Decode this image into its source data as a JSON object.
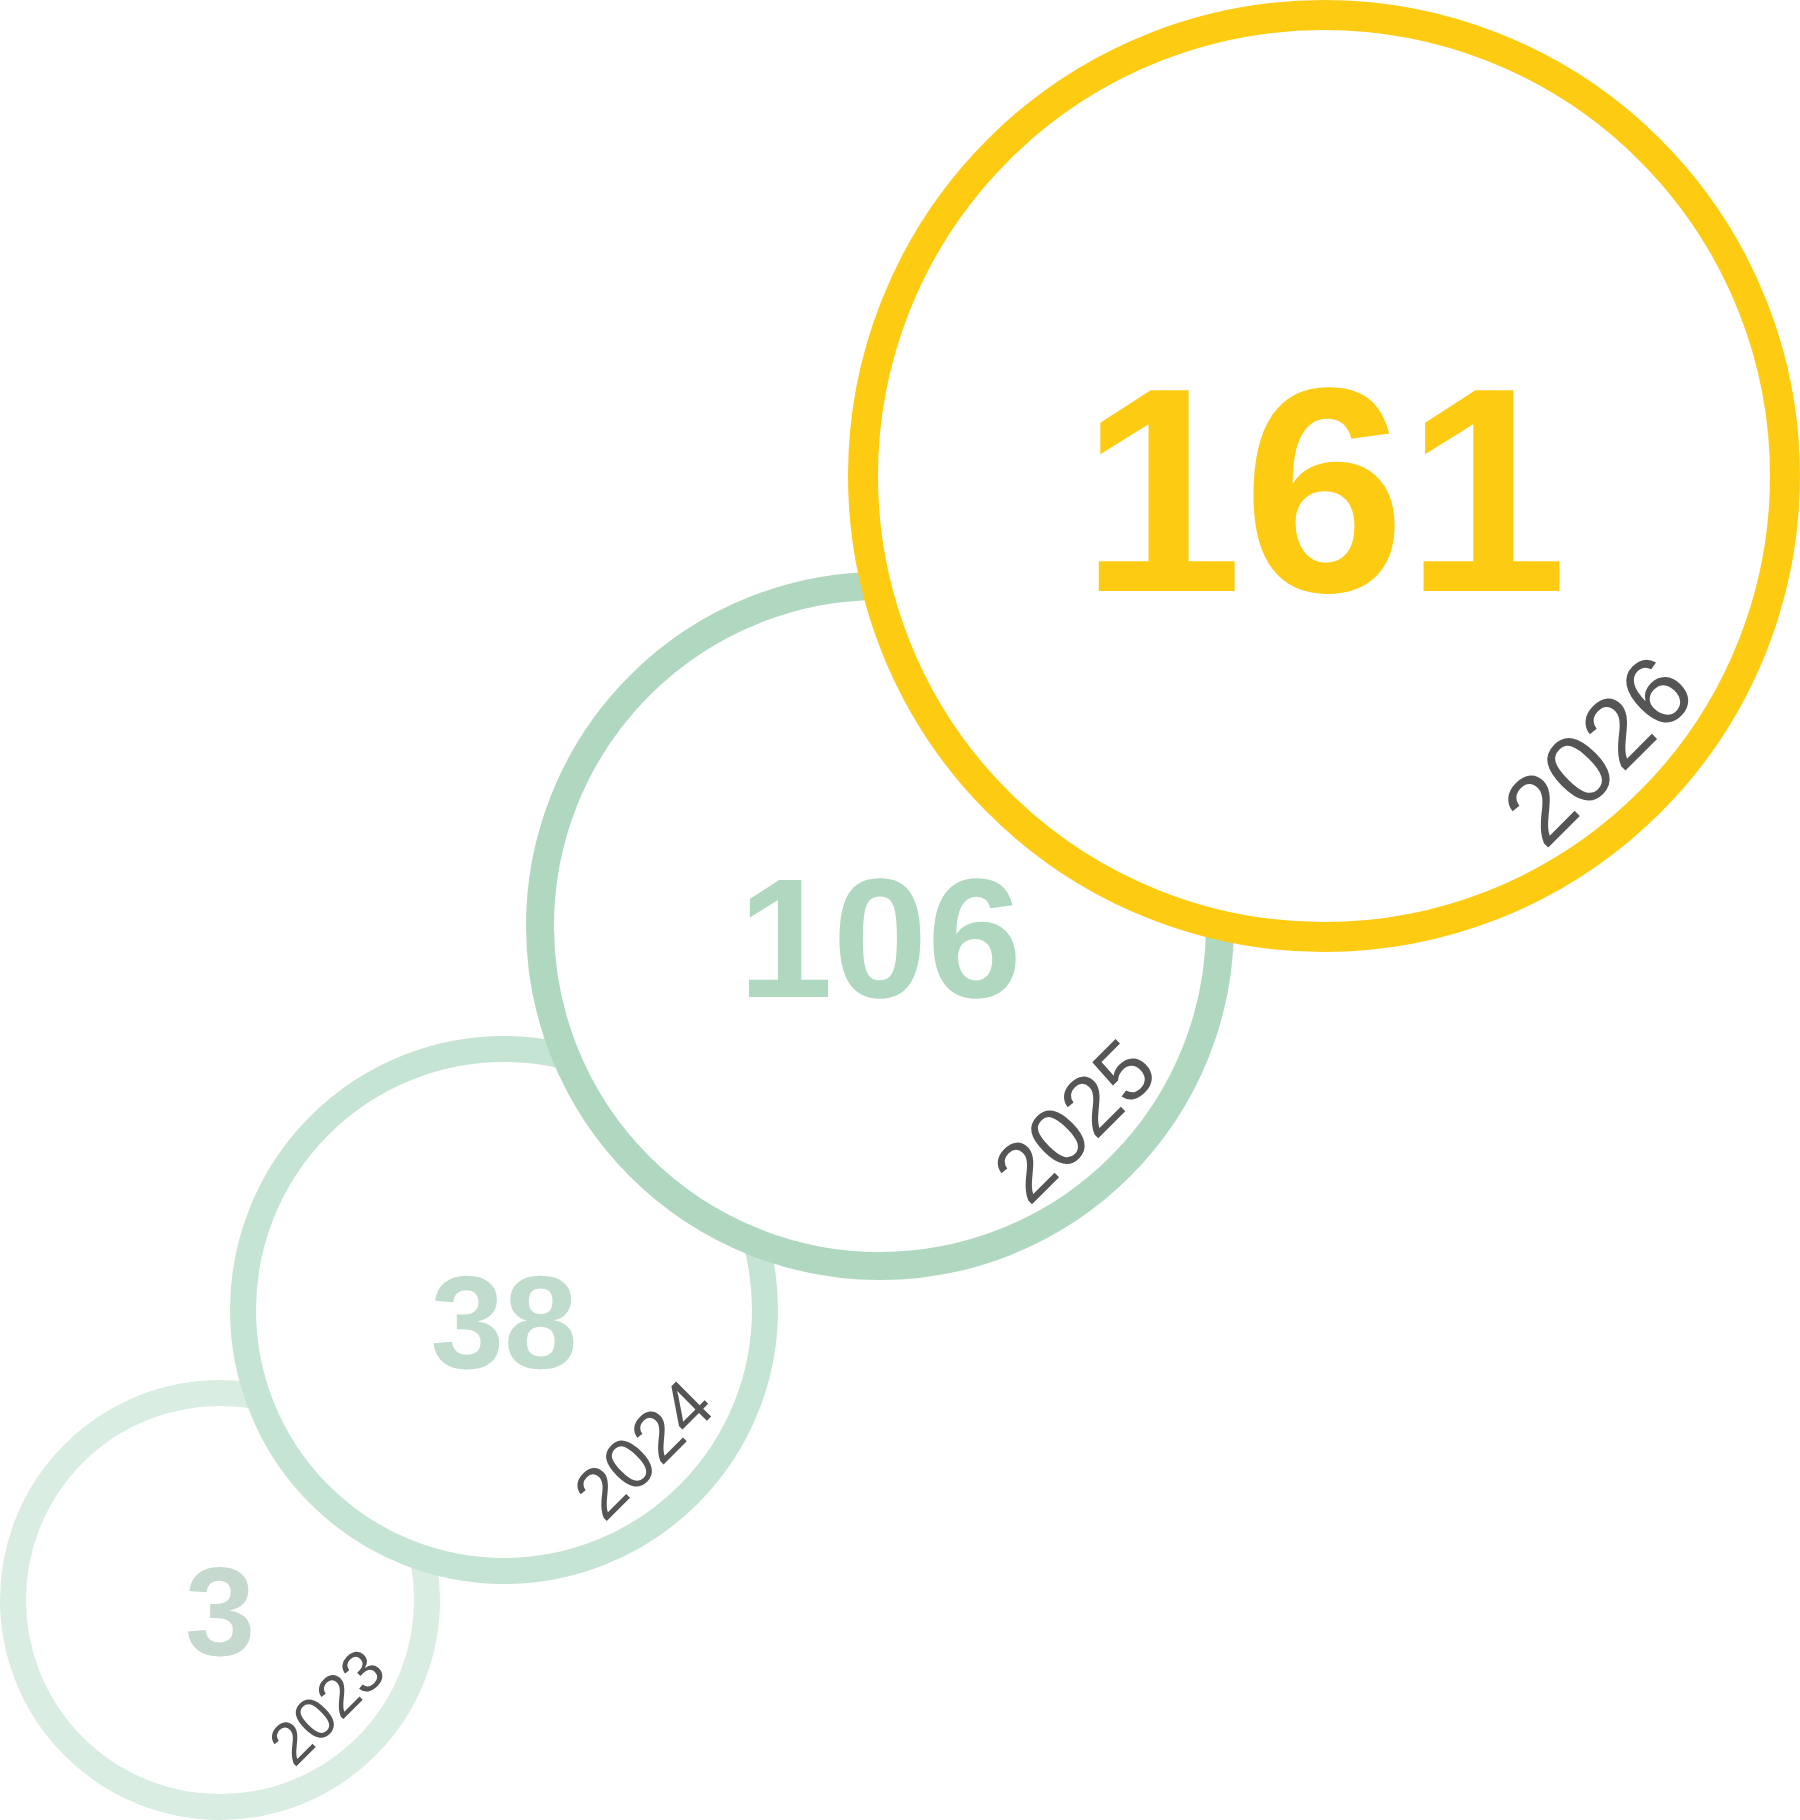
{
  "chart_data": {
    "type": "other",
    "categories": [
      "2023",
      "2024",
      "2025",
      "2026"
    ],
    "values": [
      3,
      38,
      106,
      161
    ],
    "colors": [
      "#d9ede2",
      "#c6e4d3",
      "#b0d8c1",
      "#fecb13"
    ],
    "data_labels": true
  }
}
